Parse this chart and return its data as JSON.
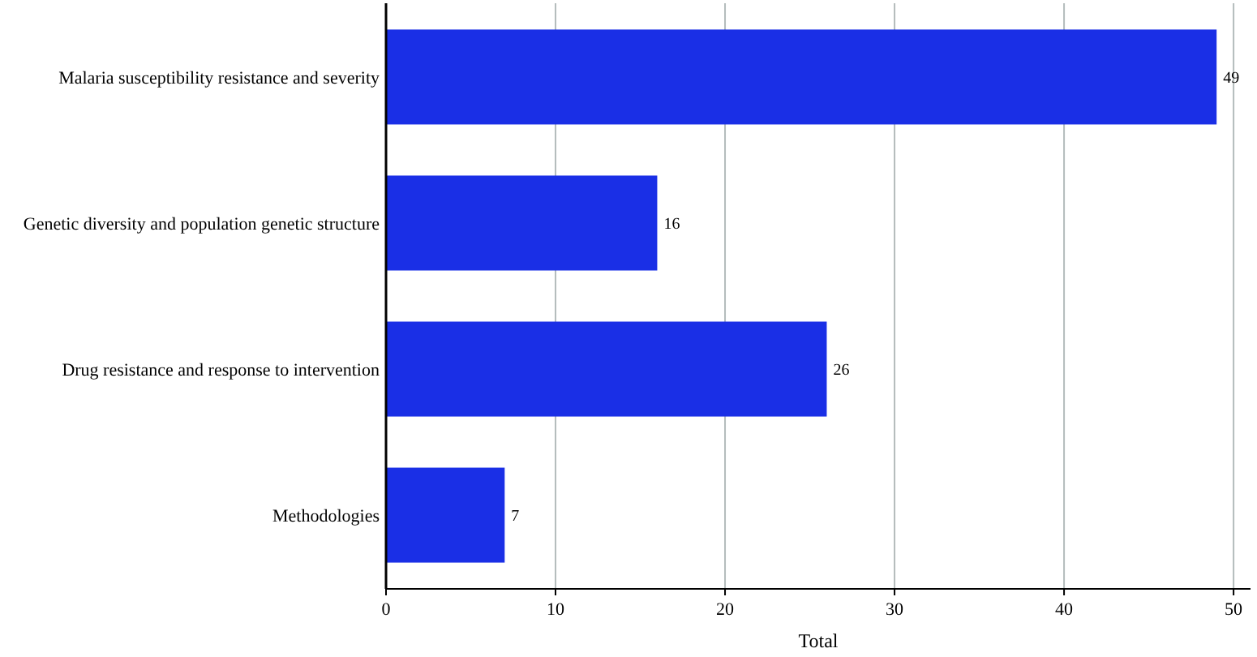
{
  "chart_data": {
    "type": "bar",
    "orientation": "horizontal",
    "xlabel": "Total",
    "categories": [
      "Malaria susceptibility resistance and severity",
      "Genetic diversity and population genetic structure",
      "Drug resistance and response to intervention",
      "Methodologies"
    ],
    "values": [
      49,
      16,
      26,
      7
    ],
    "color": "#1a2fe6",
    "data_labels": true,
    "xlim": [
      0,
      51
    ],
    "xticks": [
      0,
      10,
      20,
      30,
      40,
      50
    ],
    "grid": "x"
  }
}
